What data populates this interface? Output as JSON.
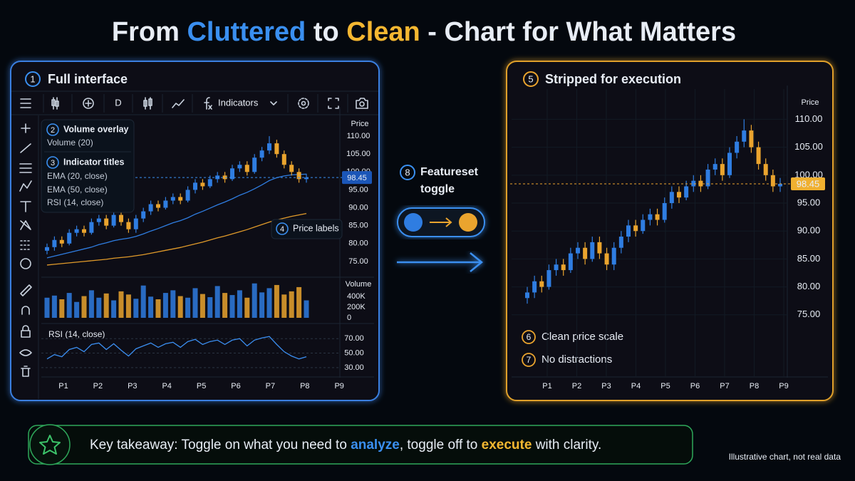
{
  "title": {
    "parts": [
      "From ",
      "Cluttered",
      " to ",
      "Clean",
      " - Chart for What Matters"
    ]
  },
  "left_panel": {
    "badge": "1",
    "title": "Full interface",
    "toolbar": {
      "interval": "D",
      "indicators": "Indicators"
    },
    "legend": {
      "volume": {
        "badge": "2",
        "title": "Volume overlay"
      },
      "indicators": {
        "badge": "3",
        "title": "Indicator titles"
      }
    },
    "callout": {
      "badge": "4",
      "label": "Price labels"
    }
  },
  "toggle": {
    "badge": "8",
    "lines": [
      "Featureset",
      "toggle"
    ]
  },
  "right_panel": {
    "badge": "5",
    "title": "Stripped for execution",
    "callouts": [
      {
        "badge": "6",
        "label": "Clean price scale"
      },
      {
        "badge": "7",
        "label": "No distractions"
      }
    ]
  },
  "takeaway": {
    "parts": [
      "Key takeaway: Toggle on what you need to ",
      "analyze",
      ", toggle off to ",
      "execute",
      " with clarity."
    ]
  },
  "footnote": "Illustrative chart, not real data",
  "chart_data": [
    {
      "type": "candlestick",
      "categories": [
        "P1",
        "P2",
        "P3",
        "P4",
        "P5",
        "P6",
        "P7",
        "P8",
        "P9"
      ],
      "up_color": "#2f7de1",
      "down_color": "#eaa42e",
      "axis_title": "Price",
      "candles": [
        [
          78,
          80,
          77,
          79
        ],
        [
          79,
          82,
          78,
          81
        ],
        [
          81,
          82,
          79,
          80
        ],
        [
          80,
          84,
          79.5,
          83
        ],
        [
          83,
          85,
          82,
          84
        ],
        [
          84,
          85,
          82,
          83
        ],
        [
          83,
          87,
          82.5,
          86
        ],
        [
          86,
          88,
          85,
          87
        ],
        [
          87,
          88,
          84,
          85
        ],
        [
          85,
          89,
          84.5,
          88
        ],
        [
          88,
          89,
          85,
          86
        ],
        [
          86,
          87,
          83,
          84
        ],
        [
          84,
          88,
          83,
          87
        ],
        [
          87,
          90,
          86,
          89
        ],
        [
          89,
          92,
          88,
          91
        ],
        [
          91,
          92,
          89,
          90
        ],
        [
          90,
          93,
          89.5,
          92
        ],
        [
          92,
          94,
          91,
          93
        ],
        [
          93,
          94,
          91,
          92
        ],
        [
          92,
          96,
          91.5,
          95
        ],
        [
          95,
          98,
          94,
          97
        ],
        [
          97,
          98,
          95,
          96
        ],
        [
          96,
          99,
          95.5,
          98
        ],
        [
          98,
          100,
          97,
          99
        ],
        [
          99,
          100,
          97,
          98
        ],
        [
          98,
          102,
          97.5,
          101
        ],
        [
          101,
          103,
          100,
          102
        ],
        [
          102,
          103,
          99,
          100
        ],
        [
          100,
          105,
          99.5,
          104
        ],
        [
          104,
          107,
          103,
          106
        ],
        [
          106,
          110,
          105,
          108
        ],
        [
          108,
          109,
          104,
          105
        ],
        [
          105,
          106,
          101,
          102
        ],
        [
          102,
          103,
          99,
          100
        ],
        [
          100,
          101,
          97,
          98
        ],
        [
          98,
          99.5,
          97,
          98.45
        ]
      ],
      "ylim": [
        70.4,
        114.2
      ],
      "yticks": [
        {
          "value": 75,
          "label": "75.00"
        },
        {
          "value": 80,
          "label": "80.00"
        },
        {
          "value": 85,
          "label": "85.00"
        },
        {
          "value": 90,
          "label": "90.00"
        },
        {
          "value": 95,
          "label": "95.00"
        },
        {
          "value": 100,
          "label": "100.00"
        },
        {
          "value": 105,
          "label": "105.00"
        },
        {
          "value": 110,
          "label": "110.00"
        }
      ],
      "last_price": 98.45,
      "emas": [
        {
          "name": "EMA (20, close)",
          "color": "#2f7de1",
          "values": [
            76,
            76.5,
            77,
            77.5,
            78,
            78.5,
            79,
            79.7,
            80.2,
            80.8,
            81.2,
            81.5,
            82,
            82.7,
            83.5,
            84.2,
            85,
            85.8,
            86.4,
            87.2,
            88.2,
            89,
            89.9,
            90.8,
            91.6,
            92.5,
            93.5,
            94.3,
            95.3,
            96.4,
            97.6,
            98.4,
            98.9,
            99.2,
            99.3,
            99.4
          ]
        },
        {
          "name": "EMA (50, close)",
          "color": "#e09a2a",
          "values": [
            74,
            74.2,
            74.4,
            74.6,
            74.8,
            75,
            75.2,
            75.4,
            75.6,
            75.9,
            76.1,
            76.3,
            76.6,
            76.9,
            77.3,
            77.7,
            78.1,
            78.5,
            78.9,
            79.4,
            79.9,
            80.4,
            81,
            81.6,
            82.1,
            82.7,
            83.3,
            83.9,
            84.6,
            85.3,
            86,
            86.6,
            87.1,
            87.6,
            88,
            88.4
          ]
        }
      ],
      "volume": {
        "name": "Volume (20)",
        "axis_title": "Volume",
        "ylim": [
          0,
          700000
        ],
        "yticks": [
          0,
          {
            "value": 200000,
            "label": "200K"
          },
          {
            "value": 400000,
            "label": "400K"
          }
        ],
        "values": [
          380000,
          420000,
          350000,
          470000,
          300000,
          410000,
          520000,
          380000,
          460000,
          330000,
          500000,
          440000,
          360000,
          610000,
          400000,
          350000,
          470000,
          520000,
          410000,
          380000,
          560000,
          450000,
          390000,
          600000,
          470000,
          430000,
          520000,
          380000,
          650000,
          480000,
          560000,
          620000,
          440000,
          500000,
          580000,
          330000
        ]
      },
      "rsi": {
        "name": "RSI (14, close)",
        "color": "#3b8ef0",
        "ylim": [
          21,
          87
        ],
        "yticks": [
          {
            "value": 30,
            "label": "30.00"
          },
          {
            "value": 50,
            "label": "50.00"
          },
          {
            "value": 70,
            "label": "70.00"
          }
        ],
        "values": [
          42,
          48,
          45,
          55,
          58,
          52,
          62,
          64,
          55,
          63,
          54,
          46,
          56,
          60,
          64,
          58,
          63,
          65,
          58,
          66,
          69,
          62,
          66,
          68,
          62,
          68,
          70,
          60,
          68,
          71,
          73,
          62,
          52,
          46,
          42,
          45
        ]
      }
    },
    {
      "type": "candlestick",
      "categories": [
        "P1",
        "P2",
        "P3",
        "P4",
        "P5",
        "P6",
        "P7",
        "P8",
        "P9"
      ],
      "up_color": "#2f7de1",
      "down_color": "#eaa42e",
      "axis_title": "Price",
      "grid": true,
      "candles": [
        [
          78,
          80,
          77,
          79
        ],
        [
          79,
          82,
          78,
          81
        ],
        [
          81,
          82,
          79,
          80
        ],
        [
          80,
          84,
          79.5,
          83
        ],
        [
          83,
          85,
          82,
          84
        ],
        [
          84,
          85,
          82,
          83
        ],
        [
          83,
          87,
          82.5,
          86
        ],
        [
          86,
          88,
          85,
          87
        ],
        [
          87,
          88,
          84,
          85
        ],
        [
          85,
          89,
          84.5,
          88
        ],
        [
          88,
          89,
          85,
          86
        ],
        [
          86,
          87,
          83,
          84
        ],
        [
          84,
          88,
          83,
          87
        ],
        [
          87,
          90,
          86,
          89
        ],
        [
          89,
          92,
          88,
          91
        ],
        [
          91,
          92,
          89,
          90
        ],
        [
          90,
          93,
          89.5,
          92
        ],
        [
          92,
          94,
          91,
          93
        ],
        [
          93,
          94,
          91,
          92
        ],
        [
          92,
          96,
          91.5,
          95
        ],
        [
          95,
          98,
          94,
          97
        ],
        [
          97,
          98,
          95,
          96
        ],
        [
          96,
          99,
          95.5,
          98
        ],
        [
          98,
          100,
          97,
          99
        ],
        [
          99,
          100,
          97,
          98
        ],
        [
          98,
          102,
          97.5,
          101
        ],
        [
          101,
          103,
          100,
          102
        ],
        [
          102,
          103,
          99,
          100
        ],
        [
          100,
          105,
          99.5,
          104
        ],
        [
          104,
          107,
          103,
          106
        ],
        [
          106,
          110,
          105,
          108
        ],
        [
          108,
          109,
          104,
          105
        ],
        [
          105,
          106,
          101,
          102
        ],
        [
          102,
          103,
          99,
          100
        ],
        [
          100,
          101,
          97,
          98
        ],
        [
          98,
          99.5,
          97,
          98.45
        ]
      ],
      "ylim": [
        64,
        113.5
      ],
      "yticks": [
        {
          "value": 75,
          "label": "75.00"
        },
        {
          "value": 80,
          "label": "80.00"
        },
        {
          "value": 85,
          "label": "85.00"
        },
        {
          "value": 90,
          "label": "90.00"
        },
        {
          "value": 95,
          "label": "95.00"
        },
        {
          "value": 100,
          "label": "100.00"
        },
        {
          "value": 105,
          "label": "105.00"
        },
        {
          "value": 110,
          "label": "110.00"
        }
      ],
      "last_price": 98.45
    }
  ]
}
